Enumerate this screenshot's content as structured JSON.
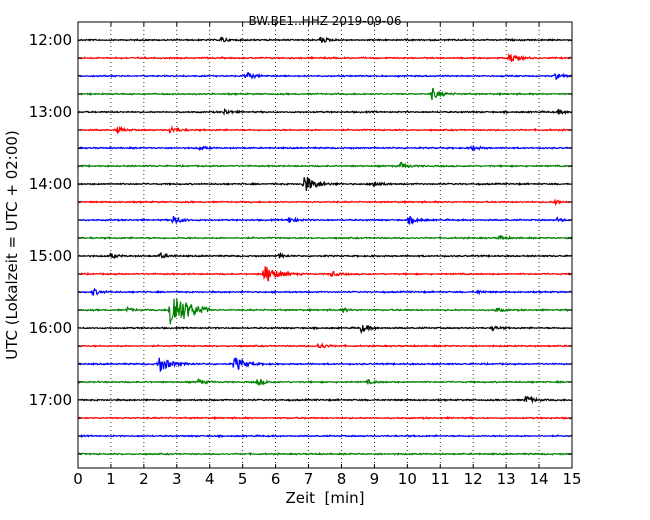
{
  "chart_data": {
    "type": "line",
    "title": "BW.BE1..HHZ 2019-09-06",
    "xlabel": "Zeit  [min]",
    "ylabel": "UTC (Lokalzeit = UTC + 02:00)",
    "xlim": [
      0,
      15
    ],
    "x_ticks": [
      "0",
      "1",
      "2",
      "3",
      "4",
      "5",
      "6",
      "7",
      "8",
      "9",
      "10",
      "11",
      "12",
      "13",
      "14",
      "15"
    ],
    "y_tick_labels": [
      "12:00",
      "13:00",
      "14:00",
      "15:00",
      "16:00",
      "17:00"
    ],
    "grid": "vertical dotted",
    "trace_colors": [
      "#000000",
      "#ff0000",
      "#0000ff",
      "#008000"
    ],
    "traces": [
      {
        "start": "12:00",
        "events": [
          [
            4.35,
            0.4
          ],
          [
            7.35,
            0.5
          ]
        ]
      },
      {
        "start": "12:15",
        "events": [
          [
            13.1,
            0.7
          ]
        ]
      },
      {
        "start": "12:30",
        "events": [
          [
            5.1,
            0.6
          ],
          [
            14.5,
            0.4
          ]
        ]
      },
      {
        "start": "12:45",
        "events": [
          [
            10.75,
            0.8
          ]
        ]
      },
      {
        "start": "13:00",
        "events": [
          [
            4.45,
            0.4
          ],
          [
            14.6,
            0.3
          ]
        ]
      },
      {
        "start": "13:15",
        "events": [
          [
            1.2,
            0.4
          ],
          [
            2.8,
            0.5
          ]
        ]
      },
      {
        "start": "13:30",
        "events": [
          [
            3.7,
            0.3
          ],
          [
            11.95,
            0.4
          ]
        ]
      },
      {
        "start": "13:45",
        "events": [
          [
            9.8,
            0.5
          ]
        ]
      },
      {
        "start": "14:00",
        "events": [
          [
            6.85,
            1.4
          ],
          [
            8.95,
            0.5
          ]
        ]
      },
      {
        "start": "14:15",
        "events": [
          [
            14.5,
            0.3
          ]
        ]
      },
      {
        "start": "14:30",
        "events": [
          [
            2.9,
            0.7
          ],
          [
            6.4,
            0.5
          ],
          [
            10.05,
            0.6
          ],
          [
            14.55,
            0.3
          ]
        ]
      },
      {
        "start": "14:45",
        "events": [
          [
            12.8,
            0.3
          ]
        ]
      },
      {
        "start": "15:00",
        "events": [
          [
            1.0,
            0.4
          ],
          [
            2.5,
            0.4
          ],
          [
            6.1,
            0.3
          ]
        ]
      },
      {
        "start": "15:15",
        "events": [
          [
            5.65,
            1.5
          ],
          [
            7.7,
            0.4
          ]
        ]
      },
      {
        "start": "15:30",
        "events": [
          [
            0.45,
            0.5
          ],
          [
            12.1,
            0.3
          ]
        ]
      },
      {
        "start": "15:45",
        "events": [
          [
            2.8,
            3.0
          ],
          [
            1.5,
            0.3
          ],
          [
            8.05,
            0.3
          ],
          [
            12.7,
            0.3
          ]
        ]
      },
      {
        "start": "16:00",
        "events": [
          [
            8.6,
            0.6
          ],
          [
            12.6,
            0.3
          ]
        ]
      },
      {
        "start": "16:15",
        "events": [
          [
            7.3,
            0.5
          ]
        ]
      },
      {
        "start": "16:30",
        "events": [
          [
            2.45,
            1.3
          ],
          [
            4.75,
            1.1
          ]
        ]
      },
      {
        "start": "16:45",
        "events": [
          [
            3.65,
            0.4
          ],
          [
            5.45,
            0.5
          ],
          [
            8.8,
            0.3
          ]
        ]
      },
      {
        "start": "17:00",
        "events": [
          [
            13.6,
            0.6
          ]
        ]
      },
      {
        "start": "17:15",
        "events": []
      },
      {
        "start": "17:30",
        "events": []
      },
      {
        "start": "17:45",
        "events": []
      }
    ]
  }
}
